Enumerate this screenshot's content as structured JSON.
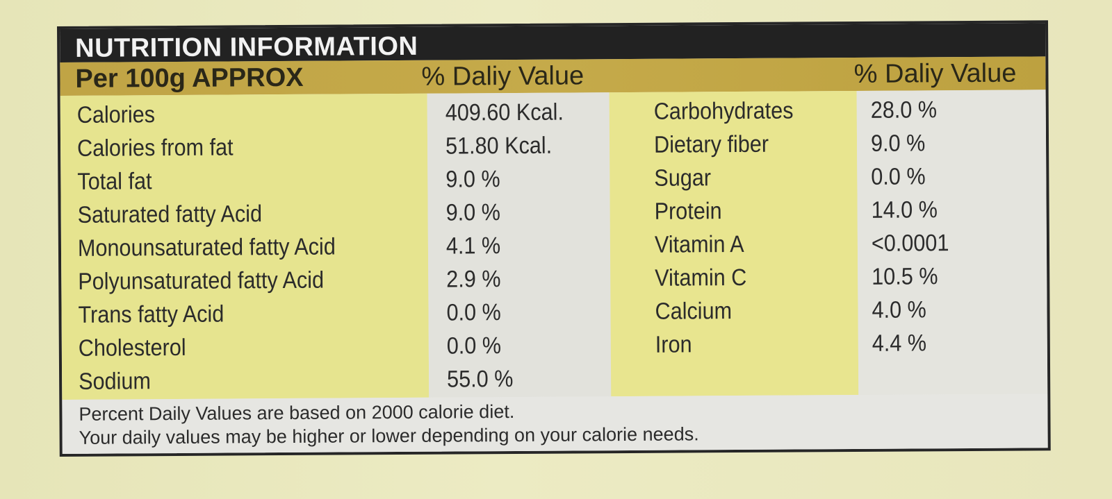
{
  "panel": {
    "title": "NUTRITION INFORMATION",
    "per_label": "Per 100g APPROX",
    "dv_label_left": "% Daliy Value",
    "dv_label_right": "% Daliy Value"
  },
  "rows": [
    {
      "left_name": "Calories",
      "left_value": "409.60 Kcal.",
      "right_name": "Carbohydrates",
      "right_value": "28.0 %"
    },
    {
      "left_name": "Calories from fat",
      "left_value": "51.80 Kcal.",
      "right_name": "Dietary fiber",
      "right_value": "9.0 %"
    },
    {
      "left_name": "Total fat",
      "left_value": "9.0 %",
      "right_name": "Sugar",
      "right_value": "0.0 %"
    },
    {
      "left_name": "Saturated fatty Acid",
      "left_value": "9.0 %",
      "right_name": "Protein",
      "right_value": "14.0 %"
    },
    {
      "left_name": "Monounsaturated fatty Acid",
      "left_value": "4.1 %",
      "right_name": "Vitamin A",
      "right_value": "<0.0001"
    },
    {
      "left_name": "Polyunsaturated fatty Acid",
      "left_value": "2.9 %",
      "right_name": "Vitamin C",
      "right_value": "10.5 %"
    },
    {
      "left_name": "Trans fatty Acid",
      "left_value": "0.0 %",
      "right_name": "Calcium",
      "right_value": "4.0 %"
    },
    {
      "left_name": "Cholesterol",
      "left_value": "0.0 %",
      "right_name": "Iron",
      "right_value": "4.4 %"
    },
    {
      "left_name": "Sodium",
      "left_value": "55.0 %",
      "right_name": "",
      "right_value": ""
    }
  ],
  "footer": {
    "line1": "Percent Daily Values are based on 2000 calorie diet.",
    "line2": "Your daily values may be higher or lower depending on your calorie needs."
  },
  "colors": {
    "title_bar": "#222222",
    "subheader": "#c3a747",
    "yellow_column": "#e6e48f",
    "gray_column": "#e2e2dc"
  }
}
